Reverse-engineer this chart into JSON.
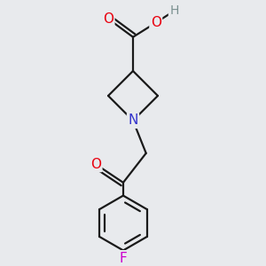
{
  "background_color": "#e8eaed",
  "bond_color": "#1a1a1a",
  "atom_colors": {
    "O": "#e8000e",
    "N": "#3333cc",
    "F": "#cc00cc",
    "H": "#7a9090",
    "C": "#1a1a1a"
  },
  "bond_lw": 1.6,
  "font_size": 11,
  "figsize": [
    3.0,
    3.0
  ],
  "dpi": 100,
  "xlim": [
    -1.2,
    1.2
  ],
  "ylim": [
    -2.2,
    1.6
  ]
}
